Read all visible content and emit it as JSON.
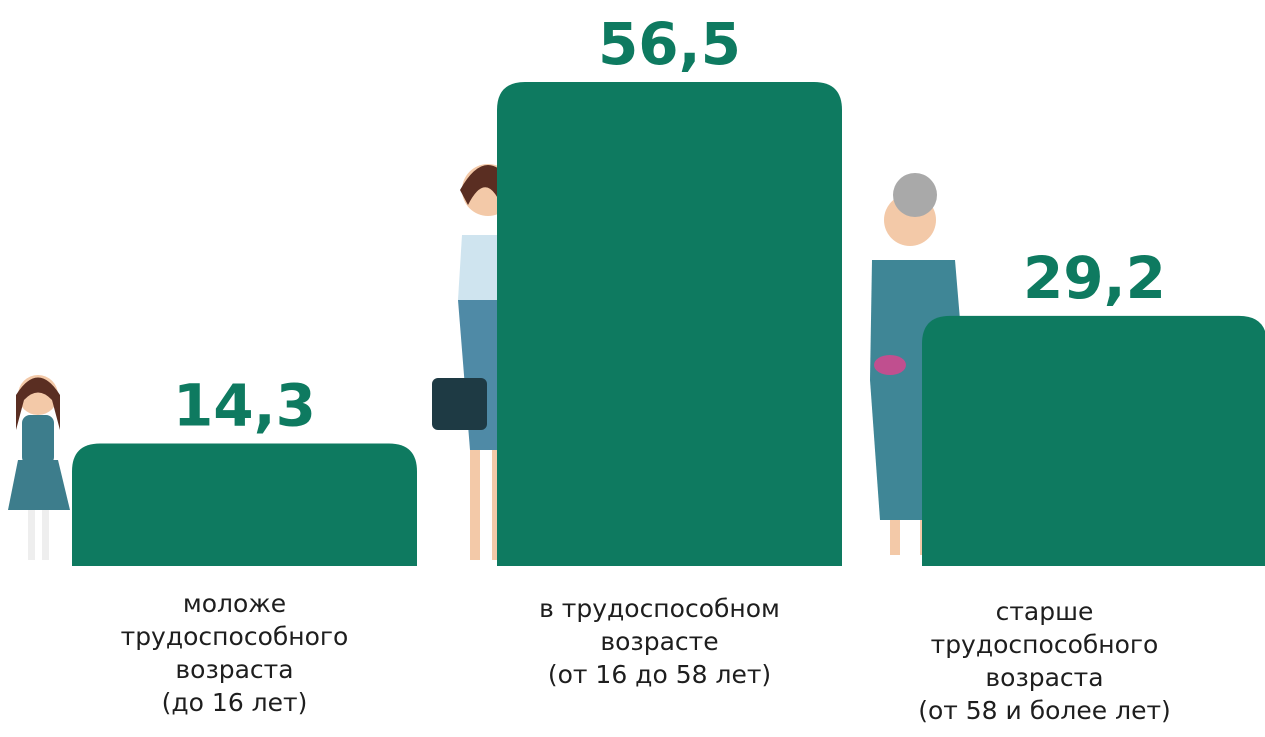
{
  "chart_data": {
    "type": "bar",
    "categories": [
      [
        "моложе",
        "трудоспособного",
        "возраста",
        "(до 16 лет)"
      ],
      [
        "в трудоспособном",
        "возрасте",
        "(от 16 до 58 лет)"
      ],
      [
        "старше",
        "трудоспособного",
        "возраста",
        "(от 58 и более лет)"
      ]
    ],
    "values": [
      14.3,
      56.5,
      29.2
    ],
    "value_labels": [
      "14,3",
      "56,5",
      "29,2"
    ],
    "color": "#0e7a60"
  }
}
